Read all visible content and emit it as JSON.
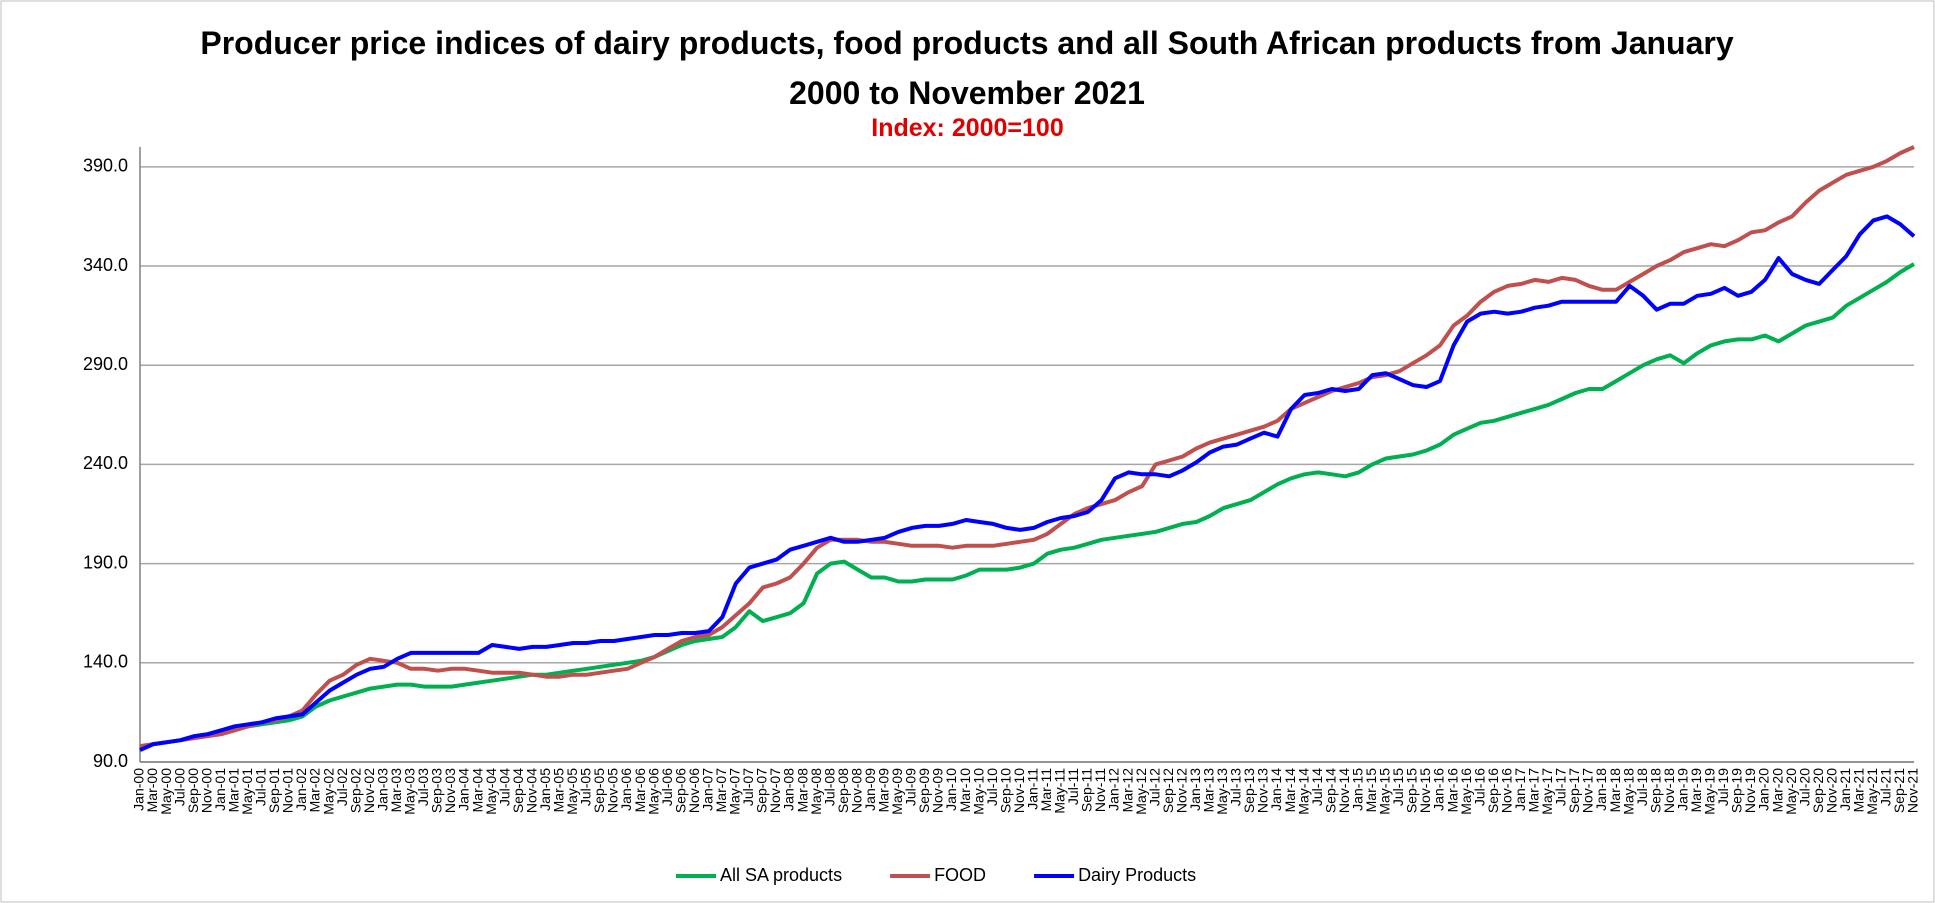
{
  "chart_data": {
    "type": "line",
    "title": "Producer price indices of dairy products, food products and all South African products from January 2000 to November 2021",
    "subtitle": "Index: 2000=100",
    "categories": [
      "Jan-00",
      "Mar-00",
      "May-00",
      "Jul-00",
      "Sep-00",
      "Nov-00",
      "Jan-01",
      "Mar-01",
      "May-01",
      "Jul-01",
      "Sep-01",
      "Nov-01",
      "Jan-02",
      "Mar-02",
      "May-02",
      "Jul-02",
      "Sep-02",
      "Nov-02",
      "Jan-03",
      "Mar-03",
      "May-03",
      "Jul-03",
      "Sep-03",
      "Nov-03",
      "Jan-04",
      "Mar-04",
      "May-04",
      "Jul-04",
      "Sep-04",
      "Nov-04",
      "Jan-05",
      "Mar-05",
      "May-05",
      "Jul-05",
      "Sep-05",
      "Nov-05",
      "Jan-06",
      "Mar-06",
      "May-06",
      "Jul-06",
      "Sep-06",
      "Nov-06",
      "Jan-07",
      "Mar-07",
      "May-07",
      "Jul-07",
      "Sep-07",
      "Nov-07",
      "Jan-08",
      "Mar-08",
      "May-08",
      "Jul-08",
      "Sep-08",
      "Nov-08",
      "Jan-09",
      "Mar-09",
      "May-09",
      "Jul-09",
      "Sep-09",
      "Nov-09",
      "Jan-10",
      "Mar-10",
      "May-10",
      "Jul-10",
      "Sep-10",
      "Nov-10",
      "Jan-11",
      "Mar-11",
      "May-11",
      "Jul-11",
      "Sep-11",
      "Nov-11",
      "Jan-12",
      "Mar-12",
      "May-12",
      "Jul-12",
      "Sep-12",
      "Nov-12",
      "Jan-13",
      "Mar-13",
      "May-13",
      "Jul-13",
      "Sep-13",
      "Nov-13",
      "Jan-14",
      "Mar-14",
      "May-14",
      "Jul-14",
      "Sep-14",
      "Nov-14",
      "Jan-15",
      "Mar-15",
      "May-15",
      "Jul-15",
      "Sep-15",
      "Nov-15",
      "Jan-16",
      "Mar-16",
      "May-16",
      "Jul-16",
      "Sep-16",
      "Nov-16",
      "Jan-17",
      "Mar-17",
      "May-17",
      "Jul-17",
      "Sep-17",
      "Nov-17",
      "Jan-18",
      "Mar-18",
      "May-18",
      "Jul-18",
      "Sep-18",
      "Nov-18",
      "Jan-19",
      "Mar-19",
      "May-19",
      "Jul-19",
      "Sep-19",
      "Nov-19",
      "Jan-20",
      "Mar-20",
      "May-20",
      "Jul-20",
      "Sep-20",
      "Nov-20",
      "Jan-21",
      "Mar-21",
      "May-21",
      "Jul-21",
      "Sep-21",
      "Nov-21"
    ],
    "series": [
      {
        "name": "All SA products",
        "color": "#00b050",
        "values": [
          97,
          99,
          100,
          101,
          103,
          104,
          106,
          107,
          108,
          109,
          110,
          111,
          113,
          118,
          121,
          123,
          125,
          127,
          128,
          129,
          129,
          128,
          128,
          128,
          129,
          130,
          131,
          132,
          133,
          134,
          134,
          135,
          136,
          137,
          138,
          139,
          140,
          141,
          143,
          146,
          149,
          151,
          152,
          153,
          158,
          166,
          161,
          163,
          165,
          170,
          185,
          190,
          191,
          187,
          183,
          183,
          181,
          181,
          182,
          182,
          182,
          184,
          187,
          187,
          187,
          188,
          190,
          195,
          197,
          198,
          200,
          202,
          203,
          204,
          205,
          206,
          208,
          210,
          211,
          214,
          218,
          220,
          222,
          226,
          230,
          233,
          235,
          236,
          235,
          234,
          236,
          240,
          243,
          244,
          245,
          247,
          250,
          255,
          258,
          261,
          262,
          264,
          266,
          268,
          270,
          273,
          276,
          278,
          278,
          282,
          286,
          290,
          293,
          295,
          291,
          296,
          300,
          302,
          303,
          303,
          305,
          302,
          306,
          310,
          312,
          314,
          320,
          324,
          328,
          332,
          337,
          341
        ]
      },
      {
        "name": "FOOD",
        "color": "#c0504d",
        "values": [
          98,
          99,
          100,
          101,
          102,
          103,
          104,
          106,
          108,
          110,
          111,
          113,
          116,
          124,
          131,
          134,
          139,
          142,
          141,
          140,
          137,
          137,
          136,
          137,
          137,
          136,
          135,
          135,
          135,
          134,
          133,
          133,
          134,
          134,
          135,
          136,
          137,
          140,
          143,
          147,
          151,
          153,
          154,
          158,
          164,
          170,
          178,
          180,
          183,
          190,
          198,
          202,
          202,
          202,
          201,
          201,
          200,
          199,
          199,
          199,
          198,
          199,
          199,
          199,
          200,
          201,
          202,
          205,
          210,
          215,
          218,
          220,
          222,
          226,
          229,
          240,
          242,
          244,
          248,
          251,
          253,
          255,
          257,
          259,
          262,
          268,
          271,
          274,
          277,
          279,
          281,
          284,
          285,
          287,
          291,
          295,
          300,
          310,
          315,
          322,
          327,
          330,
          331,
          333,
          332,
          334,
          333,
          330,
          328,
          328,
          332,
          336,
          340,
          343,
          347,
          349,
          351,
          350,
          353,
          357,
          358,
          362,
          365,
          372,
          378,
          382,
          386,
          388,
          390,
          393,
          397,
          400
        ]
      },
      {
        "name": "Dairy Products",
        "color": "#0000ff",
        "values": [
          96,
          99,
          100,
          101,
          103,
          104,
          106,
          108,
          109,
          110,
          112,
          113,
          114,
          120,
          126,
          130,
          134,
          137,
          138,
          142,
          145,
          145,
          145,
          145,
          145,
          145,
          149,
          148,
          147,
          148,
          148,
          149,
          150,
          150,
          151,
          151,
          152,
          153,
          154,
          154,
          155,
          155,
          156,
          163,
          180,
          188,
          190,
          192,
          197,
          199,
          201,
          203,
          201,
          201,
          202,
          203,
          206,
          208,
          209,
          209,
          210,
          212,
          211,
          210,
          208,
          207,
          208,
          211,
          213,
          214,
          216,
          222,
          233,
          236,
          235,
          235,
          234,
          237,
          241,
          246,
          249,
          250,
          253,
          256,
          254,
          268,
          275,
          276,
          278,
          277,
          278,
          285,
          286,
          283,
          280,
          279,
          282,
          300,
          312,
          316,
          317,
          316,
          317,
          319,
          320,
          322,
          322,
          322,
          322,
          322,
          330,
          325,
          318,
          321,
          321,
          325,
          326,
          329,
          325,
          327,
          333,
          344,
          336,
          333,
          331,
          338,
          345,
          356,
          363,
          365,
          361,
          355
        ]
      }
    ],
    "ylim": [
      90,
      400
    ],
    "yticks": [
      {
        "value": 90,
        "label": "90.0"
      },
      {
        "value": 140,
        "label": "140.0"
      },
      {
        "value": 190,
        "label": "190.0"
      },
      {
        "value": 240,
        "label": "240.0"
      },
      {
        "value": 290,
        "label": "290.0"
      },
      {
        "value": 340,
        "label": "340.0"
      },
      {
        "value": 390,
        "label": "390.0"
      }
    ],
    "grid": true,
    "legend": "bottom"
  }
}
